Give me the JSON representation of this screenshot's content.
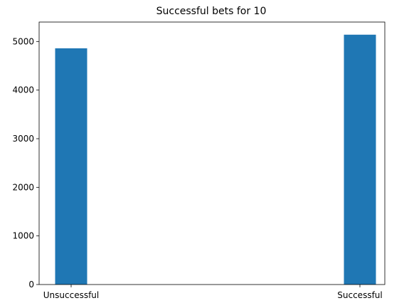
{
  "chart_data": {
    "type": "bar",
    "title": "Successful bets for 10",
    "xlabel": "",
    "ylabel": "",
    "categories": [
      "Unsuccessful",
      "Successful"
    ],
    "values": [
      4860,
      5140
    ],
    "ylim": [
      0,
      5400
    ],
    "yticks": [
      0,
      1000,
      2000,
      3000,
      4000,
      5000
    ],
    "bar_color": "#1f77b4",
    "grid": false,
    "legend": "none"
  }
}
